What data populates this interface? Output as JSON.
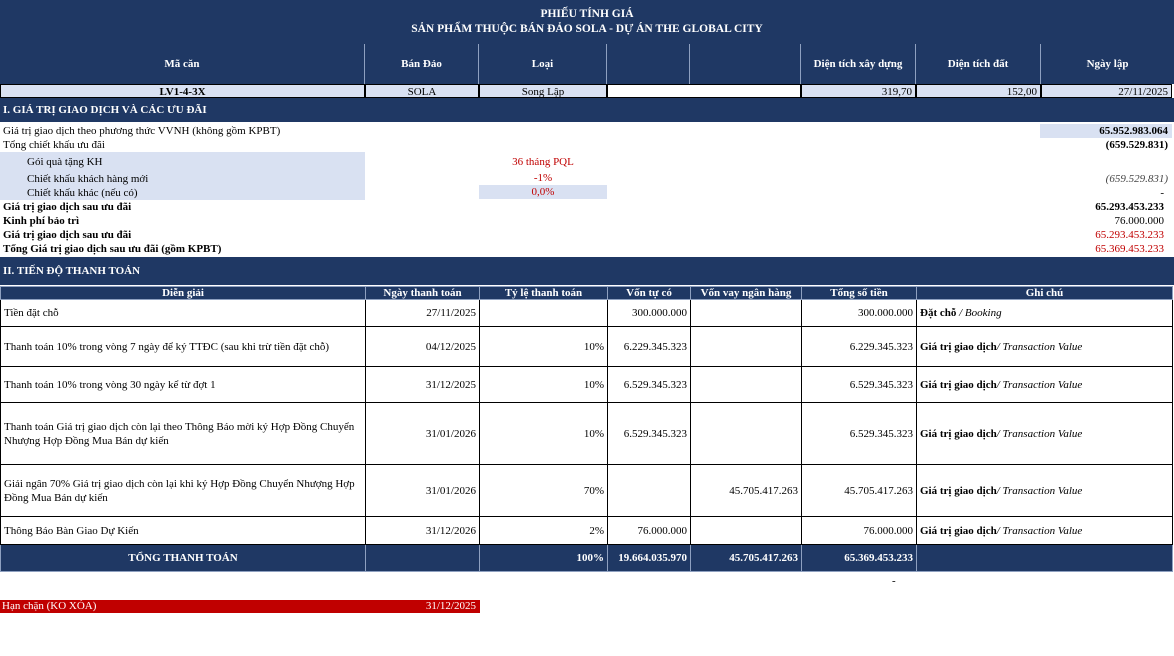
{
  "header": {
    "title": "PHIẾU TÍNH GIÁ",
    "subtitle": "SẢN PHẨM THUỘC BÁN ĐẢO SOLA - DỰ ÁN THE GLOBAL CITY"
  },
  "columns": {
    "ma_can": "Mã căn",
    "ban_dao": "Bán Đảo",
    "loai": "Loại",
    "dt_xay_dung": "Diện tích xây dựng",
    "dt_dat": "Diện tích đất",
    "ngay_lap": "Ngày lập"
  },
  "unit": {
    "ma_can": "LV1-4-3X",
    "ban_dao": "SOLA",
    "loai": "Song Lập",
    "dt_xay_dung": "319,70",
    "dt_dat": "152,00",
    "ngay_lap": "27/11/2025"
  },
  "section1": {
    "title": "I. GIÁ TRỊ GIAO DỊCH VÀ CÁC ƯU ĐÃI",
    "gtgd_label": "Giá trị giao dịch theo phương thức VVNH (không gồm KPBT)",
    "gtgd_value": "65.952.983.064",
    "tong_ck_label": "Tổng chiết khấu ưu đãi",
    "tong_ck_value": "(659.529.831)",
    "qua_tang_label": "Gói quà tặng KH",
    "qua_tang_value": "36 tháng PQL",
    "ck_moi_label": "Chiết khấu khách hàng mới",
    "ck_moi_rate": "-1%",
    "ck_moi_value": "(659.529.831)",
    "ck_khac_label": "Chiết khấu khác (nếu có)",
    "ck_khac_rate": "0,0%",
    "ck_khac_value": "-",
    "gtgd_sau_ud_label": "Giá trị giao dịch sau ưu đãi",
    "gtgd_sau_ud_value": "65.293.453.233",
    "kpbt_label": "Kinh phí bảo trì",
    "kpbt_value": "76.000.000",
    "gtgd_sau_ud2_label": "Giá trị giao dịch sau ưu đãi",
    "gtgd_sau_ud2_value": "65.293.453.233",
    "tong_gtgd_label": "Tổng Giá trị giao dịch sau ưu đãi (gồm KPBT)",
    "tong_gtgd_value": "65.369.453.233"
  },
  "section2": {
    "title": "II. TIẾN ĐỘ THANH TOÁN",
    "headers": [
      "Diễn giải",
      "Ngày thanh toán",
      "Tỷ lệ thanh toán",
      "Vốn tự có",
      "Vốn vay ngân hàng",
      "Tổng số tiền",
      "Ghi chú"
    ],
    "rows": [
      {
        "desc": "Tiền đặt chỗ",
        "date": "27/11/2025",
        "rate": "",
        "own": "300.000.000",
        "loan": "",
        "total": "300.000.000",
        "note_bold": "Đặt chỗ",
        "note_italic": " / Booking"
      },
      {
        "desc": "Thanh toán 10% trong vòng 7 ngày để ký TTĐC (sau khi trừ tiền đặt chỗ)",
        "date": "04/12/2025",
        "rate": "10%",
        "own": "6.229.345.323",
        "loan": "",
        "total": "6.229.345.323",
        "note_bold": "Giá trị giao dịch",
        "note_italic": "/ Transaction Value"
      },
      {
        "desc": "Thanh toán 10% trong vòng 30 ngày kể từ đợt 1",
        "date": "31/12/2025",
        "rate": "10%",
        "own": "6.529.345.323",
        "loan": "",
        "total": "6.529.345.323",
        "note_bold": "Giá trị giao dịch",
        "note_italic": "/ Transaction Value"
      },
      {
        "desc": "Thanh toán Giá trị giao dịch còn lại theo Thông Báo mời ký Hợp Đồng Chuyển Nhượng Hợp Đồng Mua Bán dự kiến",
        "date": "31/01/2026",
        "rate": "10%",
        "own": "6.529.345.323",
        "loan": "",
        "total": "6.529.345.323",
        "note_bold": "Giá trị giao dịch",
        "note_italic": "/ Transaction Value"
      },
      {
        "desc": "Giải ngân 70% Giá trị giao dịch còn lại khi ký Hợp Đồng Chuyển Nhượng Hợp Đồng Mua Bán dự kiến",
        "date": "31/01/2026",
        "rate": "70%",
        "own": "",
        "loan": "45.705.417.263",
        "total": "45.705.417.263",
        "note_bold": "Giá trị giao dịch",
        "note_italic": "/ Transaction Value"
      },
      {
        "desc": "Thông Báo Bàn Giao Dự Kiến",
        "date": "31/12/2026",
        "rate": "2%",
        "own": "76.000.000",
        "loan": "",
        "total": "76.000.000",
        "note_bold": "Giá trị giao dịch",
        "note_italic": "/ Transaction Value"
      }
    ],
    "total": {
      "label": "TỔNG THANH TOÁN",
      "rate": "100%",
      "own": "19.664.035.970",
      "loan": "45.705.417.263",
      "total": "65.369.453.233"
    },
    "below_total": "-"
  },
  "deadline": {
    "label": "Hạn chặn (KO XÓA)",
    "date": "31/12/2025"
  },
  "colors": {
    "navy": "#1f3864",
    "lavender": "#d9e1f2",
    "red": "#c00000"
  }
}
